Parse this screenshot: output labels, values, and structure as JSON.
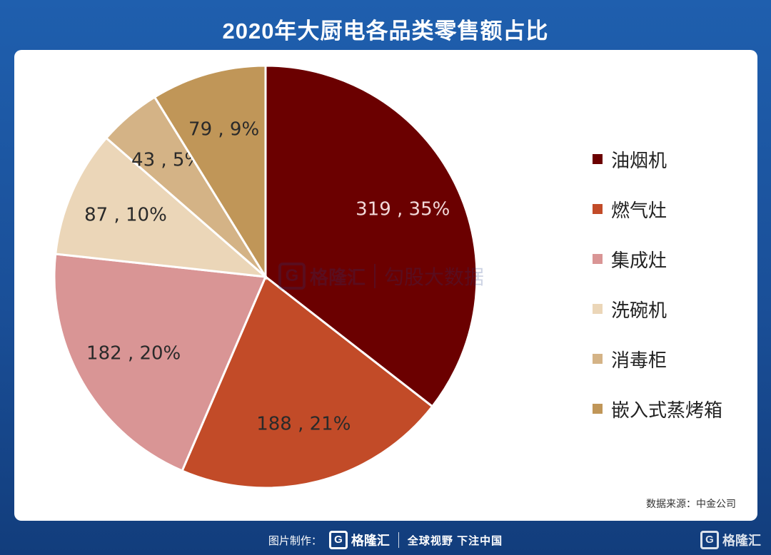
{
  "title": "2020年大厨电各品类零售额占比",
  "chart_data": {
    "type": "pie",
    "title": "2020年大厨电各品类零售额占比",
    "categories": [
      "油烟机",
      "燃气灶",
      "集成灶",
      "洗碗机",
      "消毒柜",
      "嵌入式蒸烤箱"
    ],
    "values": [
      319,
      188,
      182,
      87,
      43,
      79
    ],
    "percents": [
      35,
      21,
      20,
      10,
      5,
      9
    ],
    "labels": [
      "319 , 35%",
      "188 , 21%",
      "182 , 20%",
      "87 , 10%",
      "43 , 5%",
      "79 , 9%"
    ],
    "colors": [
      "#6b0000",
      "#c24b28",
      "#d99595",
      "#ebd6b8",
      "#d4b386",
      "#c09658"
    ],
    "label_colors": [
      "#f2d9d9",
      "#2a2a2a",
      "#2a2a2a",
      "#2a2a2a",
      "#2a2a2a",
      "#2a2a2a"
    ],
    "legend_position": "right",
    "start_angle": "12 o'clock, clockwise"
  },
  "source": "数据来源：中金公司",
  "watermark": {
    "logo_letter": "G",
    "brand": "格隆汇",
    "sub": "勾股大数据"
  },
  "footer": {
    "label": "图片制作：",
    "logo_letter": "G",
    "brand": "格隆汇",
    "slogan": "全球视野 下注中国"
  },
  "corner_logo": {
    "logo_letter": "G",
    "brand": "格隆汇"
  }
}
